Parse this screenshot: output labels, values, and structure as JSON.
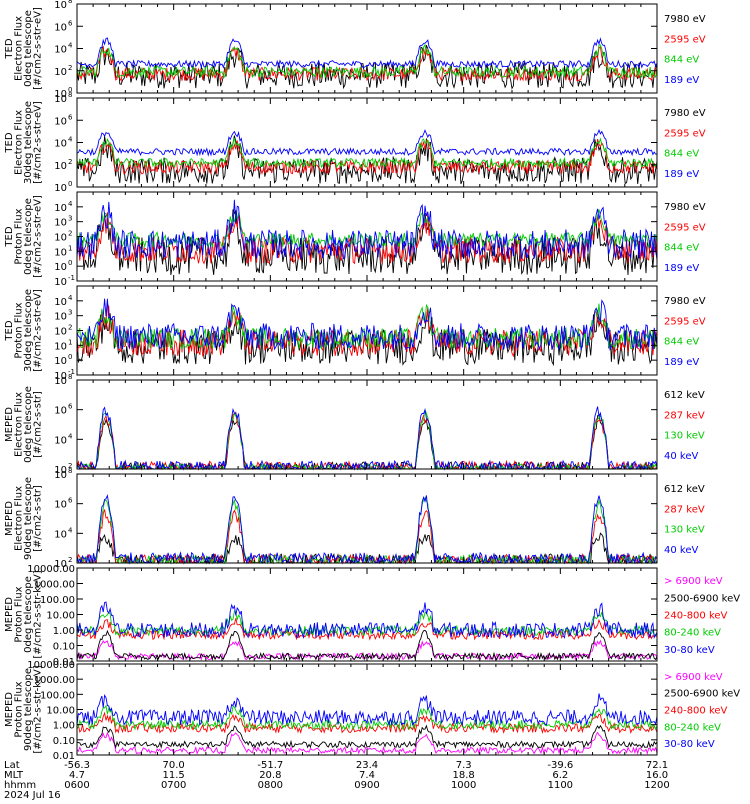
{
  "chart_data": [
    {
      "type": "line",
      "instrument": "TED",
      "ylabel": [
        "TED",
        "Electron Flux",
        "0deg telescope",
        "[#/cm2-s-str-eV]"
      ],
      "yscale": "log",
      "ylim": [
        1,
        100000000
      ],
      "yticks": [
        {
          "v": 1,
          "base": "10",
          "exp": "0"
        },
        {
          "v": 100,
          "base": "10",
          "exp": "2"
        },
        {
          "v": 10000,
          "base": "10",
          "exp": "4"
        },
        {
          "v": 1000000,
          "base": "10",
          "exp": "6"
        },
        {
          "v": 100000000,
          "base": "10",
          "exp": "8"
        }
      ],
      "series": [
        {
          "name": "7980 eV",
          "color": "#000000",
          "base": 40,
          "peak": 3000,
          "noise": 1.2
        },
        {
          "name": "2595 eV",
          "color": "#ff0000",
          "base": 50,
          "peak": 5000,
          "noise": 0.6
        },
        {
          "name": "844 eV",
          "color": "#00cc00",
          "base": 80,
          "peak": 9000,
          "noise": 0.5
        },
        {
          "name": "189 eV",
          "color": "#0000ff",
          "base": 400,
          "peak": 50000,
          "noise": 0.3
        }
      ]
    },
    {
      "type": "line",
      "instrument": "TED",
      "ylabel": [
        "TED",
        "Electron Flux",
        "30deg telescope",
        "[#/cm2-s-str-eV]"
      ],
      "yscale": "log",
      "ylim": [
        1,
        100000000
      ],
      "yticks": [
        {
          "v": 1,
          "base": "10",
          "exp": "0"
        },
        {
          "v": 100,
          "base": "10",
          "exp": "2"
        },
        {
          "v": 10000,
          "base": "10",
          "exp": "4"
        },
        {
          "v": 1000000,
          "base": "10",
          "exp": "6"
        },
        {
          "v": 100000000,
          "base": "10",
          "exp": "8"
        }
      ],
      "series": [
        {
          "name": "7980 eV",
          "color": "#000000",
          "base": 30,
          "peak": 3000,
          "noise": 1.2
        },
        {
          "name": "2595 eV",
          "color": "#ff0000",
          "base": 60,
          "peak": 6000,
          "noise": 0.6
        },
        {
          "name": "844 eV",
          "color": "#00cc00",
          "base": 150,
          "peak": 12000,
          "noise": 0.4
        },
        {
          "name": "189 eV",
          "color": "#0000ff",
          "base": 1500,
          "peak": 80000,
          "noise": 0.3
        }
      ]
    },
    {
      "type": "line",
      "instrument": "TED",
      "ylabel": [
        "TED",
        "Proton Flux",
        "0deg telescope",
        "[#/cm2-s-str-eV]"
      ],
      "yscale": "log",
      "ylim": [
        0.1,
        100000
      ],
      "yticks": [
        {
          "v": 0.1,
          "base": "10",
          "exp": "-1"
        },
        {
          "v": 1,
          "base": "10",
          "exp": "0"
        },
        {
          "v": 10,
          "base": "10",
          "exp": "1"
        },
        {
          "v": 100,
          "base": "10",
          "exp": "2"
        },
        {
          "v": 1000,
          "base": "10",
          "exp": "3"
        },
        {
          "v": 10000,
          "base": "10",
          "exp": "4"
        }
      ],
      "series": [
        {
          "name": "7980 eV",
          "color": "#000000",
          "base": 5,
          "peak": 400,
          "noise": 1.3
        },
        {
          "name": "2595 eV",
          "color": "#ff0000",
          "base": 12,
          "peak": 1000,
          "noise": 0.9
        },
        {
          "name": "844 eV",
          "color": "#00cc00",
          "base": 60,
          "peak": 2500,
          "noise": 0.5
        },
        {
          "name": "189 eV",
          "color": "#0000ff",
          "base": 30,
          "peak": 4000,
          "noise": 1.0
        }
      ]
    },
    {
      "type": "line",
      "instrument": "TED",
      "ylabel": [
        "TED",
        "Proton Flux",
        "30deg telescope",
        "[#/cm2-s-str-eV]"
      ],
      "yscale": "log",
      "ylim": [
        0.1,
        100000
      ],
      "yticks": [
        {
          "v": 0.1,
          "base": "10",
          "exp": "-1"
        },
        {
          "v": 1,
          "base": "10",
          "exp": "0"
        },
        {
          "v": 10,
          "base": "10",
          "exp": "1"
        },
        {
          "v": 100,
          "base": "10",
          "exp": "2"
        },
        {
          "v": 1000,
          "base": "10",
          "exp": "3"
        },
        {
          "v": 10000,
          "base": "10",
          "exp": "4"
        }
      ],
      "series": [
        {
          "name": "7980 eV",
          "color": "#000000",
          "base": 8,
          "peak": 400,
          "noise": 1.2
        },
        {
          "name": "2595 eV",
          "color": "#ff0000",
          "base": 15,
          "peak": 800,
          "noise": 0.9
        },
        {
          "name": "844 eV",
          "color": "#00cc00",
          "base": 30,
          "peak": 1500,
          "noise": 0.7
        },
        {
          "name": "189 eV",
          "color": "#0000ff",
          "base": 40,
          "peak": 2500,
          "noise": 0.9
        }
      ]
    },
    {
      "type": "line",
      "instrument": "MEPED",
      "ylabel": [
        "MEPED",
        "Electron Flux",
        "0deg telescope",
        "[#/cm2-s-str]"
      ],
      "yscale": "log",
      "ylim": [
        100,
        100000000
      ],
      "yticks": [
        {
          "v": 100,
          "base": "10",
          "exp": "2"
        },
        {
          "v": 10000,
          "base": "10",
          "exp": "4"
        },
        {
          "v": 1000000,
          "base": "10",
          "exp": "6"
        },
        {
          "v": 100000000,
          "base": "10",
          "exp": "8"
        }
      ],
      "series": [
        {
          "name": "612 keV",
          "color": "#000000",
          "base": 120,
          "peak": 200000,
          "noise": 0.4
        },
        {
          "name": "287 keV",
          "color": "#ff0000",
          "base": 130,
          "peak": 300000,
          "noise": 0.4
        },
        {
          "name": "130 keV",
          "color": "#00cc00",
          "base": 110,
          "peak": 500000,
          "noise": 0.3
        },
        {
          "name": "40 keV",
          "color": "#0000ff",
          "base": 140,
          "peak": 800000,
          "noise": 0.4
        }
      ]
    },
    {
      "type": "line",
      "instrument": "MEPED",
      "ylabel": [
        "MEPED",
        "Electron Flux",
        "90deg telescope",
        "[#/cm2-s-str]"
      ],
      "yscale": "log",
      "ylim": [
        100,
        100000000
      ],
      "yticks": [
        {
          "v": 100,
          "base": "10",
          "exp": "2"
        },
        {
          "v": 10000,
          "base": "10",
          "exp": "4"
        },
        {
          "v": 1000000,
          "base": "10",
          "exp": "6"
        },
        {
          "v": 100000000,
          "base": "10",
          "exp": "8"
        }
      ],
      "series": [
        {
          "name": "612 keV",
          "color": "#000000",
          "base": 130,
          "peak": 6000,
          "noise": 0.5
        },
        {
          "name": "287 keV",
          "color": "#ff0000",
          "base": 150,
          "peak": 200000,
          "noise": 0.4
        },
        {
          "name": "130 keV",
          "color": "#00cc00",
          "base": 140,
          "peak": 1000000,
          "noise": 0.4
        },
        {
          "name": "40 keV",
          "color": "#0000ff",
          "base": 200,
          "peak": 2000000,
          "noise": 0.4
        }
      ]
    },
    {
      "type": "line",
      "instrument": "MEPED",
      "ylabel": [
        "MEPED",
        "Proton Flux",
        "0deg telescope",
        "[#/cm2-s-str-keV]"
      ],
      "yscale": "log",
      "ylim": [
        0.01,
        10000
      ],
      "yticks": [
        {
          "v": 0.01,
          "label": "0.01"
        },
        {
          "v": 0.1,
          "label": "0.10"
        },
        {
          "v": 1,
          "label": "1.00"
        },
        {
          "v": 10,
          "label": "10.00"
        },
        {
          "v": 100,
          "label": "100.00"
        },
        {
          "v": 1000,
          "label": "1000.00"
        },
        {
          "v": 10000,
          "label": "10000.00"
        }
      ],
      "series": [
        {
          "name": "> 6900 keV",
          "color": "#ff00ff",
          "base": 0.02,
          "peak": 0.15,
          "noise": 0.2
        },
        {
          "name": "2500-6900 keV",
          "color": "#000000",
          "base": 0.02,
          "peak": 0.6,
          "noise": 0.2
        },
        {
          "name": "240-800 keV",
          "color": "#ff0000",
          "base": 0.5,
          "peak": 3,
          "noise": 0.3
        },
        {
          "name": "80-240 keV",
          "color": "#00cc00",
          "base": 0.9,
          "peak": 10,
          "noise": 0.3
        },
        {
          "name": "30-80 keV",
          "color": "#0000ff",
          "base": 1.0,
          "peak": 25,
          "noise": 0.5
        }
      ]
    },
    {
      "type": "line",
      "instrument": "MEPED",
      "ylabel": [
        "MEPED",
        "Proton Flux",
        "90deg telescope",
        "[#/cm2-s-str-keV]"
      ],
      "yscale": "log",
      "ylim": [
        0.01,
        10000
      ],
      "yticks": [
        {
          "v": 0.01,
          "label": "0.01"
        },
        {
          "v": 0.1,
          "label": "0.10"
        },
        {
          "v": 1,
          "label": "1.00"
        },
        {
          "v": 10,
          "label": "10.00"
        },
        {
          "v": 100,
          "label": "100.00"
        },
        {
          "v": 1000,
          "label": "1000.00"
        },
        {
          "v": 10000,
          "label": "10000.00"
        }
      ],
      "series": [
        {
          "name": "> 6900 keV",
          "color": "#ff00ff",
          "base": 0.02,
          "peak": 0.2,
          "noise": 0.2
        },
        {
          "name": "2500-6900 keV",
          "color": "#000000",
          "base": 0.05,
          "peak": 0.6,
          "noise": 0.2
        },
        {
          "name": "240-800 keV",
          "color": "#ff0000",
          "base": 0.6,
          "peak": 3,
          "noise": 0.3
        },
        {
          "name": "80-240 keV",
          "color": "#00cc00",
          "base": 1.0,
          "peak": 10,
          "noise": 0.3
        },
        {
          "name": "30-80 keV",
          "color": "#0000ff",
          "base": 3.0,
          "peak": 40,
          "noise": 0.5
        }
      ]
    }
  ],
  "x_axis": {
    "labels": [
      "Lat",
      "MLT",
      "hhmm",
      "2024 Jul 16"
    ],
    "ticks": [
      {
        "lat": "-56.3",
        "mlt": "4.7",
        "hhmm": "0600"
      },
      {
        "lat": "70.0",
        "mlt": "11.5",
        "hhmm": "0700"
      },
      {
        "lat": "-51.7",
        "mlt": "20.8",
        "hhmm": "0800"
      },
      {
        "lat": "23.4",
        "mlt": "7.4",
        "hhmm": "0900"
      },
      {
        "lat": "7.3",
        "mlt": "18.8",
        "hhmm": "1000"
      },
      {
        "lat": "-39.6",
        "mlt": "6.2",
        "hhmm": "1100"
      },
      {
        "lat": "72.1",
        "mlt": "16.0",
        "hhmm": "1200"
      }
    ],
    "events_hhmm": [
      "0618",
      "0738",
      "0936",
      "1124"
    ],
    "minor_per_major": 6
  }
}
